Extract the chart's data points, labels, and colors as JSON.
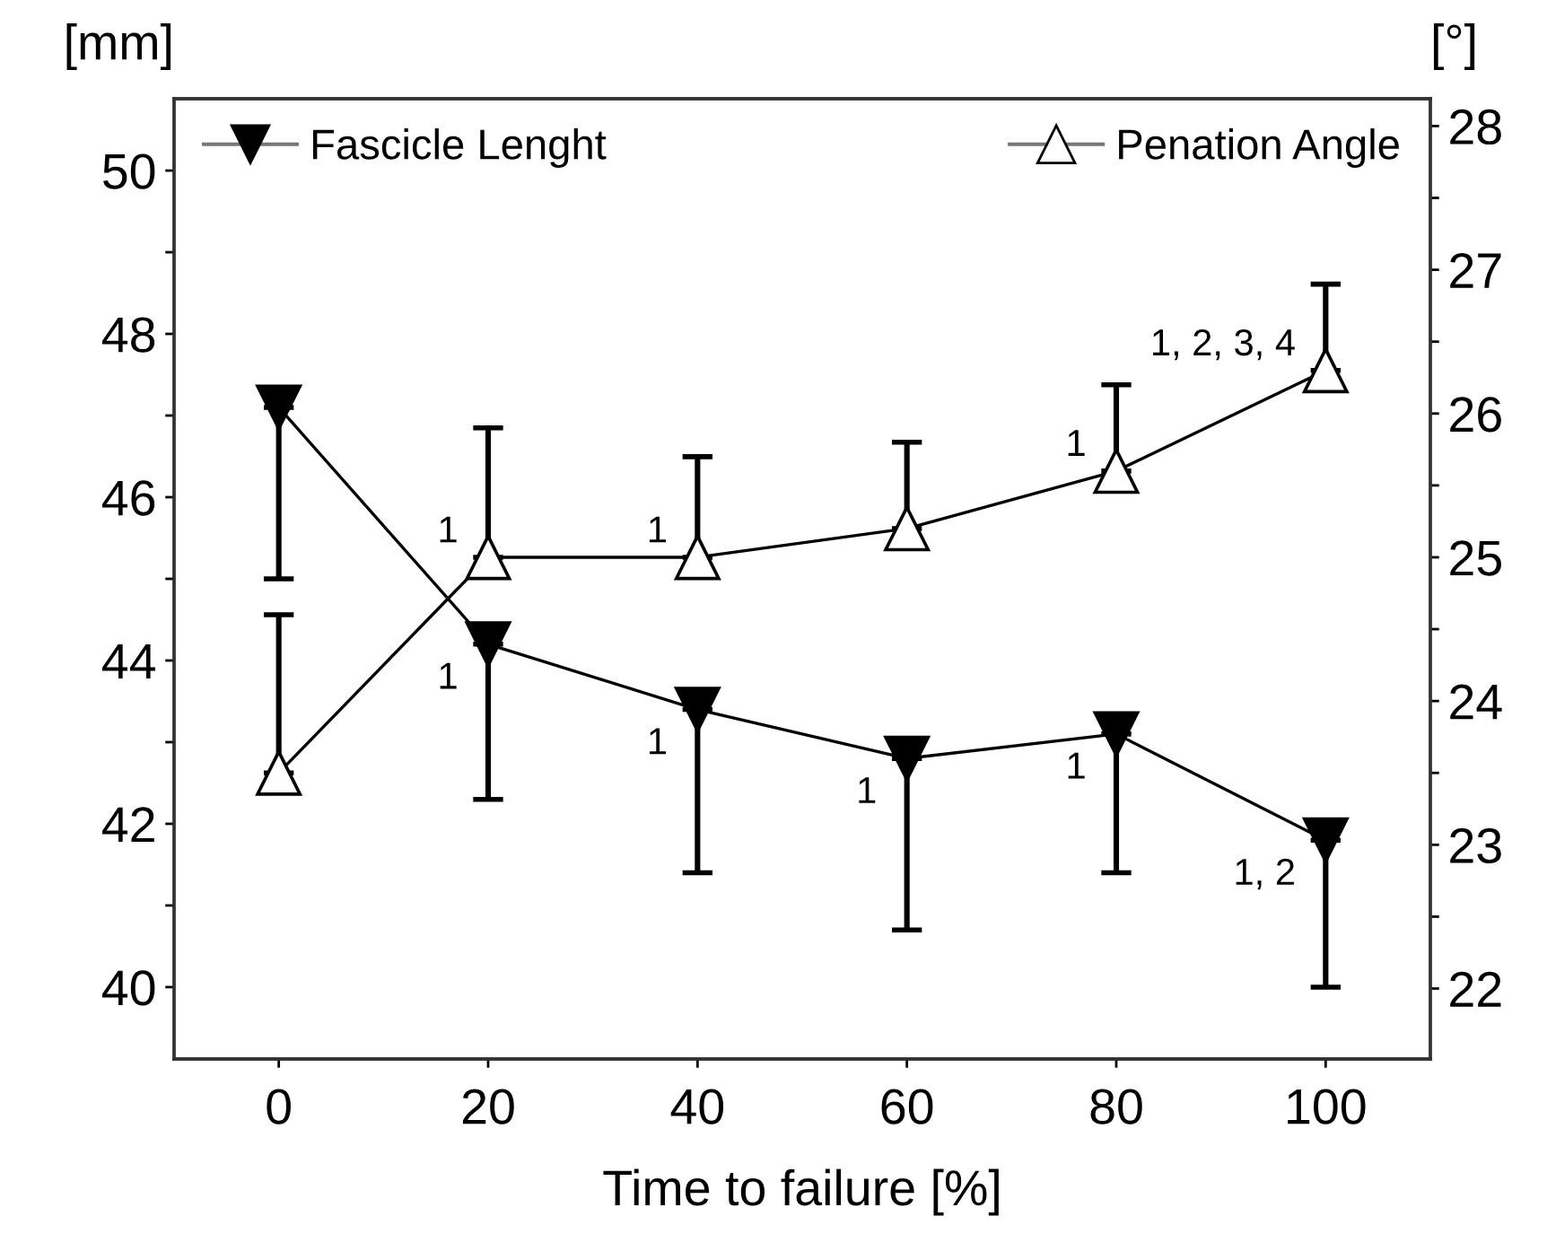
{
  "chart_data": {
    "type": "line",
    "xlabel": "Time to failure [%]",
    "ylabel": "[mm]",
    "y2label": "[°]",
    "x": [
      0,
      20,
      40,
      60,
      80,
      100
    ],
    "series": [
      {
        "name": "Fascicle Lenght",
        "color": "#000000",
        "marker": "triangle_down",
        "values": [
          47.1,
          44.2,
          43.4,
          42.8,
          43.1,
          41.8
        ],
        "errors": [
          [
            45.0,
            47.1
          ],
          [
            42.3,
            44.2
          ],
          [
            41.4,
            43.4
          ],
          [
            40.7,
            42.8
          ],
          [
            41.4,
            43.1
          ],
          [
            40.0,
            41.8
          ]
        ]
      },
      {
        "name": "Penation Angle",
        "color": "#000000",
        "marker": "triangle_open",
        "axis": "y2",
        "values": [
          23.5,
          25.0,
          25.0,
          25.2,
          25.6,
          26.3
        ],
        "errors": [
          [
            23.5,
            24.6
          ],
          [
            25.0,
            25.9
          ],
          [
            25.0,
            25.7
          ],
          [
            25.2,
            25.8
          ],
          [
            25.6,
            26.2
          ],
          [
            26.3,
            26.9
          ]
        ]
      }
    ],
    "annotations": [
      {
        "text": "1",
        "x": 20,
        "y": 44.2
      },
      {
        "text": "1",
        "x": 40,
        "y": 43.4
      },
      {
        "text": "1",
        "x": 60,
        "y": 42.8
      },
      {
        "text": "1",
        "x": 80,
        "y": 43.1
      },
      {
        "text": "1, 2",
        "x": 100,
        "y": 41.8
      },
      {
        "text": "1",
        "x": 20,
        "y": 45.26
      },
      {
        "text": "1",
        "x": 40,
        "y": 45.26
      },
      {
        "text": "1",
        "x": 80,
        "y": 46.32
      },
      {
        "text": "1, 2, 3, 4",
        "x": 100,
        "y": 47.55
      }
    ],
    "xlim": [
      -10,
      110
    ],
    "xticks": [
      0,
      20,
      40,
      60,
      80,
      100
    ],
    "ylim": [
      39.12,
      50.88
    ],
    "yticks": [
      40,
      {
        "value": 41,
        "label": null
      },
      42,
      {
        "value": 43,
        "label": null
      },
      44,
      {
        "value": 45,
        "label": null
      },
      46,
      {
        "value": 47,
        "label": null
      },
      48,
      {
        "value": 49,
        "label": null
      },
      50
    ],
    "y2lim": [
      21.51,
      28.19
    ],
    "y2ticks": [
      22,
      {
        "value": 22.5,
        "label": null
      },
      23,
      {
        "value": 23.5,
        "label": null
      },
      24,
      {
        "value": 24.5,
        "label": null
      },
      25,
      {
        "value": 25.5,
        "label": null
      },
      26,
      {
        "value": 26.5,
        "label": null
      },
      27,
      {
        "value": 27.5,
        "label": null
      },
      28
    ],
    "legend": "top",
    "grid": false,
    "line_style": "solid"
  }
}
